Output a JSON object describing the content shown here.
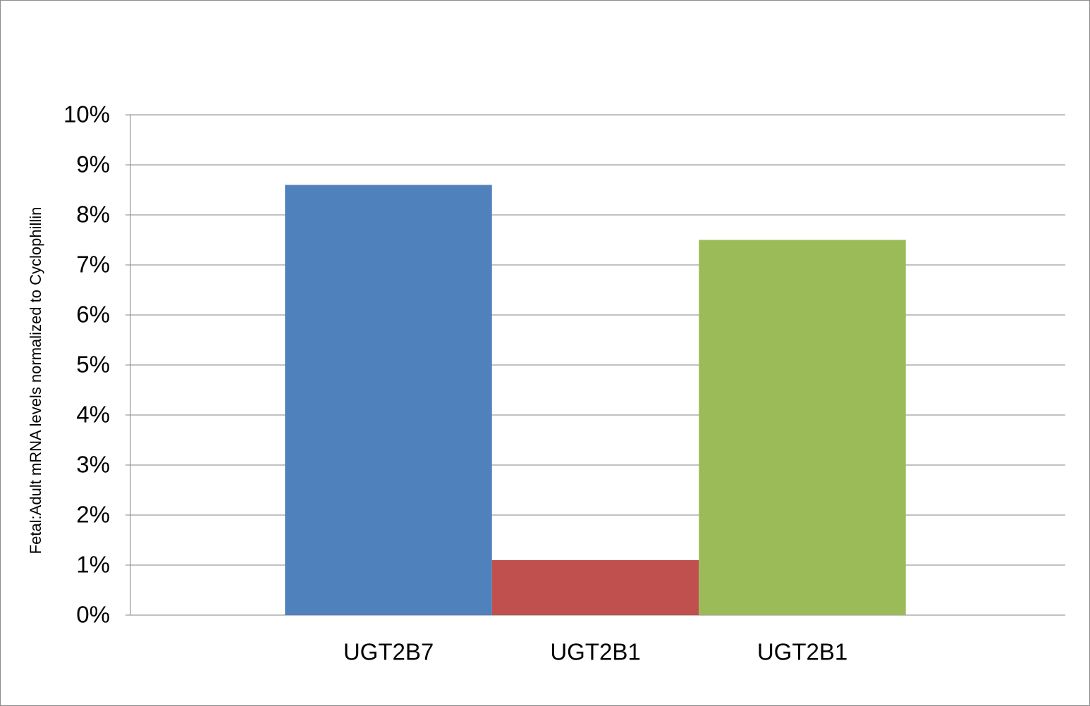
{
  "chart_data": {
    "type": "bar",
    "y_label": "Fetal:Adult mRNA levels normalized to Cyclophillin",
    "categories": [
      "UGT2B7",
      "UGT2B1",
      "UGT2B1"
    ],
    "values": [
      8.6,
      1.1,
      7.5
    ],
    "colors": [
      "#4f81bd",
      "#c0504d",
      "#9bbb59"
    ],
    "ylim": [
      0,
      10
    ],
    "yticks": [
      {
        "value": 0,
        "label": "0%"
      },
      {
        "value": 1,
        "label": "1%"
      },
      {
        "value": 2,
        "label": "2%"
      },
      {
        "value": 3,
        "label": "3%"
      },
      {
        "value": 4,
        "label": "4%"
      },
      {
        "value": 5,
        "label": "5%"
      },
      {
        "value": 6,
        "label": "6%"
      },
      {
        "value": 7,
        "label": "7%"
      },
      {
        "value": 8,
        "label": "8%"
      },
      {
        "value": 9,
        "label": "9%"
      },
      {
        "value": 10,
        "label": "10%"
      }
    ],
    "grid": true
  }
}
